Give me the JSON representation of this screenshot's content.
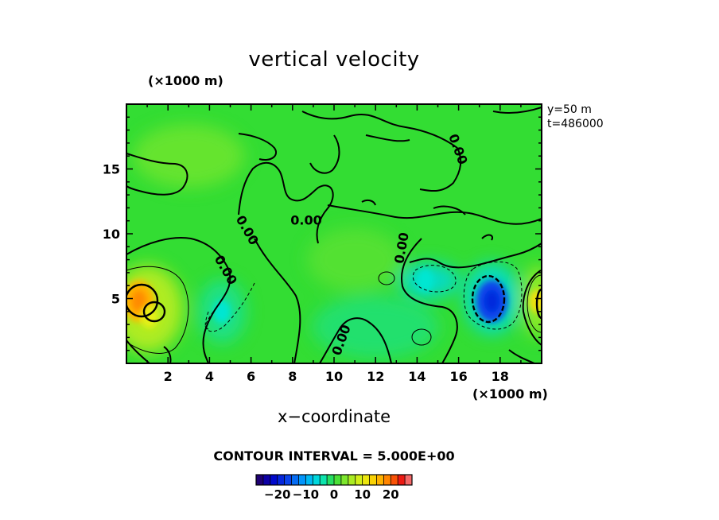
{
  "chart_data": {
    "type": "heatmap",
    "title": "vertical velocity",
    "xlabel": "x−coordinate",
    "x_unit": "(×1000 m)",
    "y_unit": "(×1000 m)",
    "xlim": [
      0,
      20
    ],
    "ylim": [
      0,
      20
    ],
    "x_ticks": [
      2,
      4,
      6,
      8,
      10,
      12,
      14,
      16,
      18
    ],
    "y_ticks": [
      5,
      10,
      15
    ],
    "annotations": [
      "y=50  m",
      "t=486000"
    ],
    "contour_interval_text": "CONTOUR INTERVAL = 5.000E+00",
    "contour_labels": [
      "0.00",
      "0.00",
      "0.00",
      "0.00",
      "0.00",
      "0.00"
    ],
    "colorbar": {
      "ticks": [
        -20,
        -10,
        0,
        10,
        20
      ],
      "tick_labels": [
        "−20",
        "−10",
        "0",
        "10",
        "20"
      ],
      "range": [
        -27.5,
        27.5
      ]
    },
    "features": [
      {
        "name": "warm updraft",
        "x": 0.6,
        "y": 4.8,
        "value": 16
      },
      {
        "name": "updraft",
        "x": 1.1,
        "y": 3.6,
        "value": 10
      },
      {
        "name": "downdraft",
        "x": 17.6,
        "y": 4.8,
        "value": -16
      },
      {
        "name": "weak downdraft",
        "x": 14.4,
        "y": 6.4,
        "value": -5
      },
      {
        "name": "weak downdraft",
        "x": 4.6,
        "y": 4.0,
        "value": -5
      },
      {
        "name": "updraft",
        "x": 19.8,
        "y": 4.8,
        "value": 12
      }
    ]
  },
  "colors": {
    "background_field": "#33dd33",
    "warm": "#f5a020",
    "cool": "#1560e6",
    "contour": "#000000"
  }
}
